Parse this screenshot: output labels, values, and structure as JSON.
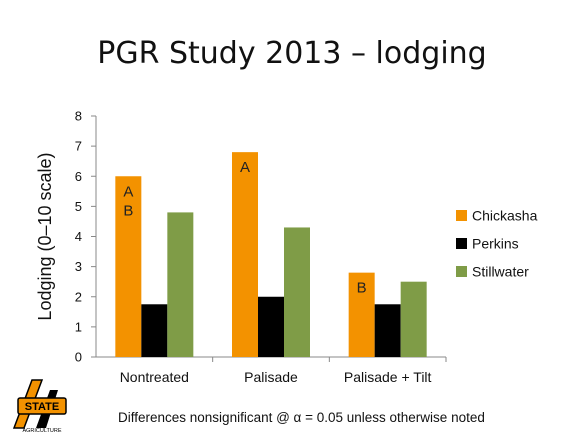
{
  "slide": {
    "title": "PGR Study 2013 – lodging",
    "footnote": "Differences nonsignificant @ α = 0.05 unless otherwise noted",
    "logo": {
      "text": "STATE",
      "subtext": "AGRICULTURE",
      "icon": "osu-agriculture-logo"
    }
  },
  "chart_data": {
    "type": "bar",
    "title": "PGR Study 2013 – lodging",
    "xlabel": "",
    "ylabel": "Lodging (0–10 scale)",
    "ylim": [
      0,
      8
    ],
    "yticks": [
      "0",
      "1",
      "2",
      "3",
      "4",
      "5",
      "6",
      "7",
      "8"
    ],
    "grid": false,
    "legend_position": "right",
    "categories": [
      "Nontreated",
      "Palisade",
      "Palisade + Tilt"
    ],
    "series": [
      {
        "name": "Chickasha",
        "color": "#F39200",
        "values": [
          6.0,
          6.8,
          2.8
        ],
        "letters": [
          "A\nB",
          "A",
          "B"
        ]
      },
      {
        "name": "Perkins",
        "color": "#000000",
        "values": [
          1.75,
          2.0,
          1.75
        ],
        "letters": [
          "",
          "",
          ""
        ]
      },
      {
        "name": "Stillwater",
        "color": "#7F9C47",
        "values": [
          4.8,
          4.3,
          2.5
        ],
        "letters": [
          "",
          "",
          ""
        ]
      }
    ]
  }
}
